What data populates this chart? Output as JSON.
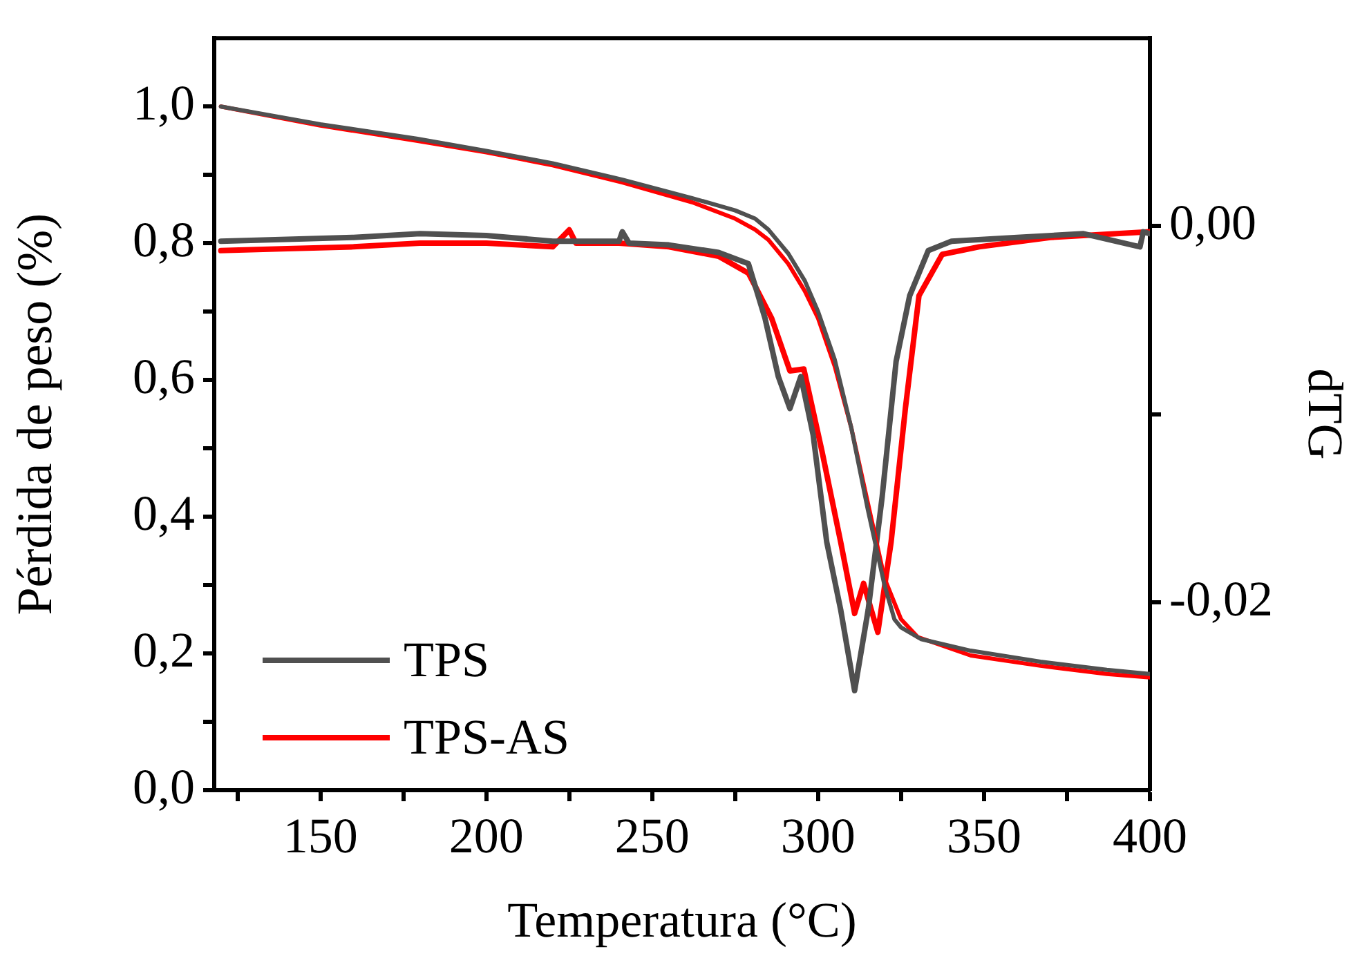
{
  "chart_data": {
    "type": "line",
    "xlabel": "Temperatura (°C)",
    "ylabel": "Pérdida de peso (%)",
    "y2label": "dTG",
    "xlim": [
      118,
      400
    ],
    "xticks": [
      {
        "value": 125,
        "label": null
      },
      150,
      {
        "value": 175,
        "label": null
      },
      200,
      {
        "value": 225,
        "label": null
      },
      250,
      {
        "value": 275,
        "label": null
      },
      300,
      {
        "value": 325,
        "label": null
      },
      350,
      {
        "value": 375,
        "label": null
      },
      400
    ],
    "ylim": [
      0,
      1.1
    ],
    "yticks": [
      {
        "value": 0,
        "label": "0,0"
      },
      {
        "value": 0.1,
        "label": null
      },
      {
        "value": 0.2,
        "label": "0,2"
      },
      {
        "value": 0.3,
        "label": null
      },
      {
        "value": 0.4,
        "label": "0,4"
      },
      {
        "value": 0.5,
        "label": null
      },
      {
        "value": 0.6,
        "label": "0,6"
      },
      {
        "value": 0.7,
        "label": null
      },
      {
        "value": 0.8,
        "label": "0,8"
      },
      {
        "value": 0.9,
        "label": null
      },
      {
        "value": 1.0,
        "label": "1,0"
      }
    ],
    "y2lim": [
      -0.03,
      0.01
    ],
    "y2ticks": [
      {
        "value": 0,
        "label": "0,00"
      },
      {
        "value": -0.01,
        "label": null
      },
      {
        "value": -0.02,
        "label": "-0,02"
      }
    ],
    "grid": false,
    "legend": "bottom left",
    "marker": "none",
    "line_style": "solid",
    "series": [
      {
        "name": "TPS",
        "color": "#505050",
        "x": [
          120,
          150,
          179,
          200,
          220,
          241,
          262,
          275,
          281,
          285,
          291,
          296,
          300,
          305,
          310,
          315,
          320,
          323,
          325,
          331,
          346,
          367,
          387,
          400
        ],
        "values": [
          1.0,
          0.974,
          0.953,
          0.935,
          0.917,
          0.893,
          0.866,
          0.848,
          0.836,
          0.82,
          0.785,
          0.745,
          0.7,
          0.63,
          0.53,
          0.41,
          0.3,
          0.25,
          0.238,
          0.221,
          0.204,
          0.188,
          0.176,
          0.17
        ]
      },
      {
        "name": "TPS-AS",
        "color": "#ff0000",
        "x": [
          120,
          150,
          179,
          200,
          220,
          241,
          262,
          275,
          281,
          285,
          291,
          296,
          300,
          305,
          310,
          315,
          320,
          325,
          330,
          346,
          367,
          387,
          400
        ],
        "values": [
          1.0,
          0.972,
          0.95,
          0.933,
          0.914,
          0.889,
          0.86,
          0.836,
          0.82,
          0.805,
          0.77,
          0.73,
          0.69,
          0.62,
          0.53,
          0.42,
          0.31,
          0.25,
          0.224,
          0.197,
          0.182,
          0.17,
          0.165
        ]
      },
      {
        "color": "#505050",
        "axis": "y2",
        "x": [
          120,
          140,
          160,
          180,
          200,
          220,
          240,
          241,
          243,
          255,
          270,
          279,
          284,
          288,
          291.5,
          294.8,
          298.5,
          302.6,
          306.8,
          311,
          315.1,
          319.3,
          323.5,
          327.6,
          333.2,
          340.2,
          360,
          380,
          397,
          398,
          400
        ],
        "values": [
          -0.0008,
          -0.0007,
          -0.0006,
          -0.0004,
          -0.0005,
          -0.0008,
          -0.0008,
          -0.0003,
          -0.0009,
          -0.001,
          -0.0014,
          -0.002,
          -0.0049,
          -0.008,
          -0.0097,
          -0.008,
          -0.0111,
          -0.0168,
          -0.0204,
          -0.0247,
          -0.0204,
          -0.0144,
          -0.0072,
          -0.0037,
          -0.0013,
          -0.0008,
          -0.0006,
          -0.0004,
          -0.0011,
          -0.0003,
          -0.0004
        ]
      },
      {
        "color": "#ff0000",
        "axis": "y2",
        "x": [
          120,
          140,
          160,
          180,
          200,
          220,
          225,
          227,
          240,
          255,
          270,
          279,
          286,
          291.5,
          295.7,
          301.2,
          306.8,
          311,
          313.7,
          318,
          322,
          326.3,
          330.4,
          337.4,
          348.5,
          370,
          400
        ],
        "values": [
          -0.0013,
          -0.0012,
          -0.0011,
          -0.0009,
          -0.0009,
          -0.0011,
          -0.0002,
          -0.0009,
          -0.0009,
          -0.0011,
          -0.0016,
          -0.0025,
          -0.0049,
          -0.0077,
          -0.0076,
          -0.012,
          -0.0168,
          -0.0206,
          -0.019,
          -0.0216,
          -0.0168,
          -0.0097,
          -0.0037,
          -0.0015,
          -0.0011,
          -0.0006,
          -0.0003
        ]
      }
    ]
  }
}
